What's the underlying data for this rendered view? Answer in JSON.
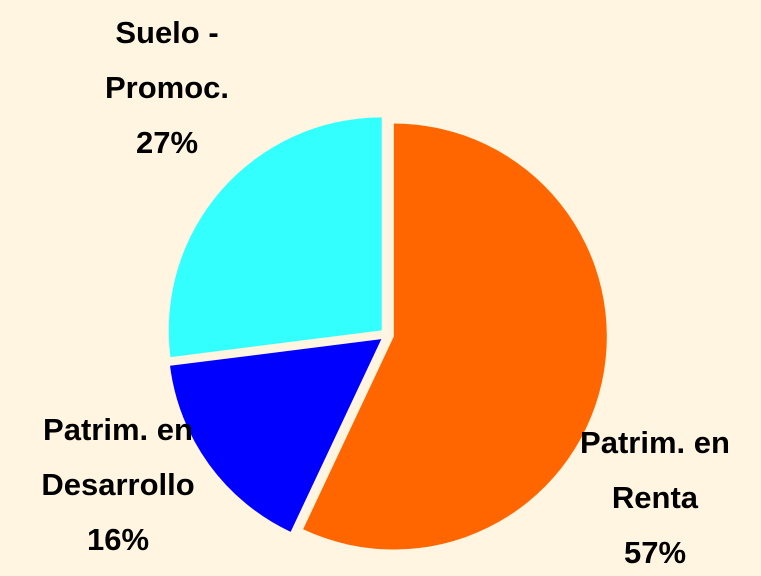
{
  "chart_data": {
    "type": "pie",
    "categories": [
      [
        "Patrim. en",
        "Renta"
      ],
      [
        "Patrim. en",
        "Desarrollo"
      ],
      [
        "Suelo -",
        "Promoc."
      ]
    ],
    "values": [
      57,
      16,
      27
    ],
    "value_labels": [
      "57%",
      "16%",
      "27%"
    ],
    "colors": [
      "#ff6600",
      "#0000ff",
      "#33ffff"
    ]
  }
}
